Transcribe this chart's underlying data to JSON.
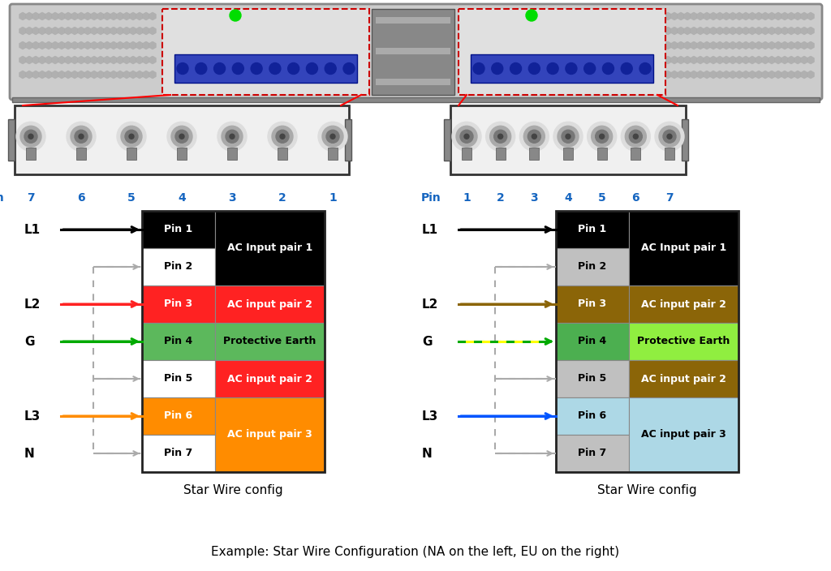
{
  "caption": "Example: Star Wire Configuration (NA on the left, EU on the right)",
  "background_color": "#ffffff",
  "na_pins": [
    "Pin 1",
    "Pin 2",
    "Pin 3",
    "Pin 4",
    "Pin 5",
    "Pin 6",
    "Pin 7"
  ],
  "na_left_colors": [
    "#000000",
    "#ffffff",
    "#ff2222",
    "#5cb85c",
    "#ffffff",
    "#ff8c00",
    "#ffffff"
  ],
  "na_right_colors": [
    "#000000",
    "#000000",
    "#ff2222",
    "#5cb85c",
    "#ff2222",
    "#ff8c00",
    "#ff8c00"
  ],
  "na_right_labels": [
    "AC Input pair 1",
    "",
    "AC input pair 2",
    "Protective Earth",
    "AC input pair 2",
    "AC input pair 3",
    ""
  ],
  "na_right_span": [
    2,
    0,
    1,
    1,
    1,
    2,
    0
  ],
  "eu_pins": [
    "Pin 1",
    "Pin 2",
    "Pin 3",
    "Pin 4",
    "Pin 5",
    "Pin 6",
    "Pin 7"
  ],
  "eu_left_colors": [
    "#000000",
    "#c0c0c0",
    "#8B6508",
    "#4caf50",
    "#c0c0c0",
    "#add8e6",
    "#c0c0c0"
  ],
  "eu_right_colors": [
    "#000000",
    "#000000",
    "#8B6508",
    "#90ee40",
    "#8B6508",
    "#add8e6",
    "#add8e6"
  ],
  "eu_right_labels": [
    "AC Input pair 1",
    "",
    "AC input pair 2",
    "Protective Earth",
    "AC input pair 2",
    "AC input pair 3",
    ""
  ],
  "eu_right_span": [
    2,
    0,
    1,
    1,
    1,
    2,
    0
  ],
  "na_wire_labels": [
    "L1",
    "L2",
    "G",
    "L3",
    "N"
  ],
  "na_wire_rows": [
    0,
    2,
    3,
    5,
    6
  ],
  "na_wire_colors": [
    "#000000",
    "#ff2222",
    "#00aa00",
    "#ff8c00",
    "#aaaaaa"
  ],
  "na_wire_solid": [
    true,
    true,
    true,
    true,
    false
  ],
  "eu_wire_labels": [
    "L1",
    "L2",
    "G",
    "L3",
    "N"
  ],
  "eu_wire_rows": [
    0,
    2,
    3,
    5,
    6
  ],
  "eu_wire_colors": [
    "#000000",
    "#8B6508",
    "#00aa00",
    "#0055ff",
    "#aaaaaa"
  ],
  "eu_wire_solid": [
    true,
    true,
    true,
    true,
    false
  ],
  "na_pin_numbers": [
    "7",
    "6",
    "5",
    "4",
    "3",
    "2",
    "1"
  ],
  "eu_pin_numbers": [
    "1",
    "2",
    "3",
    "4",
    "5",
    "6",
    "7"
  ]
}
